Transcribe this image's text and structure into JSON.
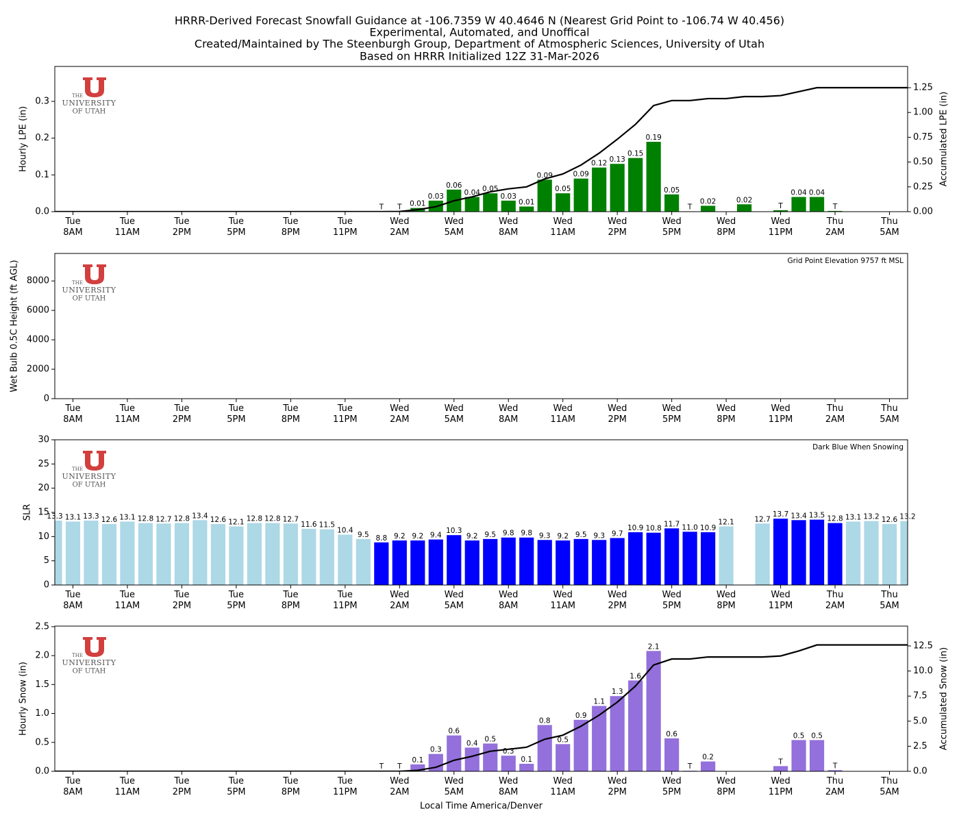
{
  "title": [
    "HRRR-Derived Forecast Snowfall Guidance at -106.7359 W 40.4646 N (Nearest Grid Point to -106.74 W 40.456)",
    "Experimental, Automated, and Unoffical",
    "Created/Maintained by The Steenburgh Group, Department of Atmospheric Sciences, University of Utah",
    "Based on HRRR Initialized 12Z 31-Mar-2026"
  ],
  "logo": [
    "THE",
    "UNIVERSITY",
    "OF UTAH"
  ],
  "chart_data": [
    {
      "type": "bar",
      "ylabel": "Hourly LPE (in)",
      "y2label": "Accumulated LPE (in)",
      "categories": [
        null,
        "Tue\n8AM",
        null,
        null,
        "Tue\n11AM",
        null,
        null,
        "Tue\n2PM",
        null,
        null,
        "Tue\n5PM",
        null,
        null,
        "Tue\n8PM",
        null,
        null,
        "Tue\n11PM",
        null,
        null,
        "Wed\n2AM",
        null,
        null,
        "Wed\n5AM",
        null,
        null,
        "Wed\n8AM",
        null,
        null,
        "Wed\n11AM",
        null,
        null,
        "Wed\n2PM",
        null,
        null,
        "Wed\n5PM",
        null,
        null,
        "Wed\n8PM",
        null,
        null,
        "Wed\n11PM",
        null,
        null,
        "Thu\n2AM",
        null,
        null,
        "Thu\n5AM",
        null
      ],
      "ylim": [
        0,
        0.395
      ],
      "yticks": [
        {
          "value": 0,
          "label": "0.0"
        },
        0.1,
        0.2,
        0.3
      ],
      "y2lim": [
        0,
        1.464
      ],
      "y2ticks": [
        {
          "value": 0,
          "label": "0.00"
        },
        0.25,
        {
          "value": 0.5,
          "label": "0.50"
        },
        0.75,
        {
          "value": 1,
          "label": "1.00"
        },
        1.25
      ],
      "series": [
        {
          "color": "#008000",
          "values": [
            0,
            0,
            0,
            0,
            0,
            0,
            0,
            0,
            0,
            0,
            0,
            0,
            0,
            0,
            0,
            0,
            0,
            0,
            0.001,
            0.001,
            0.01,
            0.03,
            0.06,
            0.04,
            0.05,
            0.03,
            0.014,
            0.087,
            0.05,
            0.09,
            0.12,
            0.13,
            0.146,
            0.19,
            0.047,
            0.001,
            0.016,
            0,
            0.02,
            0,
            0.004,
            0.04,
            0.04,
            0.002,
            0,
            0,
            0,
            0
          ],
          "value_labels": [
            null,
            null,
            null,
            null,
            null,
            null,
            null,
            null,
            null,
            null,
            null,
            null,
            null,
            null,
            null,
            null,
            null,
            null,
            "T",
            "T",
            "0.01",
            "0.03",
            "0.06",
            "0.04",
            "0.05",
            "0.03",
            "0.01",
            "0.09",
            "0.05",
            "0.09",
            "0.12",
            "0.13",
            "0.15",
            "0.19",
            "0.05",
            "T",
            "0.02",
            null,
            "0.02",
            null,
            "T",
            "0.04",
            "0.04",
            "T",
            null,
            null,
            null,
            null
          ]
        },
        {
          "type": "line",
          "axis": "y2",
          "color": "#000000",
          "values": [
            0,
            0,
            0,
            0,
            0,
            0,
            0,
            0,
            0,
            0,
            0,
            0,
            0,
            0,
            0,
            0,
            0,
            0,
            0,
            0.002,
            0.02,
            0.05,
            0.11,
            0.15,
            0.2,
            0.23,
            0.25,
            0.33,
            0.38,
            0.47,
            0.59,
            0.73,
            0.88,
            1.07,
            1.12,
            1.12,
            1.14,
            1.14,
            1.16,
            1.16,
            1.17,
            1.21,
            1.25,
            1.25,
            1.25,
            1.25,
            1.25,
            1.25
          ]
        }
      ]
    },
    {
      "type": "bar",
      "ylabel": "Wet Bulb 0.5C Height (ft AGL)",
      "annotation": "Grid Point Elevation 9757 ft MSL",
      "categories": [
        null,
        "Tue\n8AM",
        null,
        null,
        "Tue\n11AM",
        null,
        null,
        "Tue\n2PM",
        null,
        null,
        "Tue\n5PM",
        null,
        null,
        "Tue\n8PM",
        null,
        null,
        "Tue\n11PM",
        null,
        null,
        "Wed\n2AM",
        null,
        null,
        "Wed\n5AM",
        null,
        null,
        "Wed\n8AM",
        null,
        null,
        "Wed\n11AM",
        null,
        null,
        "Wed\n2PM",
        null,
        null,
        "Wed\n5PM",
        null,
        null,
        "Wed\n8PM",
        null,
        null,
        "Wed\n11PM",
        null,
        null,
        "Thu\n2AM",
        null,
        null,
        "Thu\n5AM",
        null
      ],
      "ylim": [
        0,
        9870
      ],
      "yticks": [
        0,
        2000,
        4000,
        6000,
        8000
      ]
    },
    {
      "type": "bar",
      "ylabel": "SLR",
      "annotation": "Dark Blue When Snowing",
      "categories": [
        null,
        "Tue\n8AM",
        null,
        null,
        "Tue\n11AM",
        null,
        null,
        "Tue\n2PM",
        null,
        null,
        "Tue\n5PM",
        null,
        null,
        "Tue\n8PM",
        null,
        null,
        "Tue\n11PM",
        null,
        null,
        "Wed\n2AM",
        null,
        null,
        "Wed\n5AM",
        null,
        null,
        "Wed\n8AM",
        null,
        null,
        "Wed\n11AM",
        null,
        null,
        "Wed\n2PM",
        null,
        null,
        "Wed\n5PM",
        null,
        null,
        "Wed\n8PM",
        null,
        null,
        "Wed\n11PM",
        null,
        null,
        "Thu\n2AM",
        null,
        null,
        "Thu\n5AM",
        null
      ],
      "ylim": [
        0,
        30
      ],
      "yticks": [
        0,
        5,
        10,
        15,
        20,
        25,
        30
      ],
      "series": [
        {
          "values": [
            13.3,
            13.1,
            13.3,
            12.6,
            13.1,
            12.8,
            12.7,
            12.8,
            13.4,
            12.6,
            12.1,
            12.8,
            12.8,
            12.7,
            11.6,
            11.5,
            10.4,
            9.5,
            8.8,
            9.2,
            9.2,
            9.4,
            10.3,
            9.2,
            9.5,
            9.8,
            9.8,
            9.3,
            9.2,
            9.5,
            9.3,
            9.7,
            10.9,
            10.8,
            11.7,
            11,
            10.9,
            12.1,
            null,
            12.7,
            13.7,
            13.4,
            13.5,
            12.8,
            13.1,
            13.2,
            12.6,
            13.2
          ],
          "value_labels": [
            "13.3",
            "13.1",
            "13.3",
            "12.6",
            "13.1",
            "12.8",
            "12.7",
            "12.8",
            "13.4",
            "12.6",
            "12.1",
            "12.8",
            "12.8",
            "12.7",
            "11.6",
            "11.5",
            "10.4",
            "9.5",
            "8.8",
            "9.2",
            "9.2",
            "9.4",
            "10.3",
            "9.2",
            "9.5",
            "9.8",
            "9.8",
            "9.3",
            "9.2",
            "9.5",
            "9.3",
            "9.7",
            "10.9",
            "10.8",
            "11.7",
            "11.0",
            "10.9",
            "12.1",
            null,
            "12.7",
            "13.7",
            "13.4",
            "13.5",
            "12.8",
            "13.1",
            "13.2",
            "12.6",
            "13.2"
          ],
          "colors": [
            "#add8e6",
            "#add8e6",
            "#add8e6",
            "#add8e6",
            "#add8e6",
            "#add8e6",
            "#add8e6",
            "#add8e6",
            "#add8e6",
            "#add8e6",
            "#add8e6",
            "#add8e6",
            "#add8e6",
            "#add8e6",
            "#add8e6",
            "#add8e6",
            "#add8e6",
            "#add8e6",
            "#0000ff",
            "#0000ff",
            "#0000ff",
            "#0000ff",
            "#0000ff",
            "#0000ff",
            "#0000ff",
            "#0000ff",
            "#0000ff",
            "#0000ff",
            "#0000ff",
            "#0000ff",
            "#0000ff",
            "#0000ff",
            "#0000ff",
            "#0000ff",
            "#0000ff",
            "#0000ff",
            "#0000ff",
            "#add8e6",
            null,
            "#add8e6",
            "#0000ff",
            "#0000ff",
            "#0000ff",
            "#0000ff",
            "#add8e6",
            "#add8e6",
            "#add8e6",
            "#add8e6"
          ]
        }
      ]
    },
    {
      "type": "bar",
      "ylabel": "Hourly Snow (in)",
      "y2label": "Accumulated Snow (in)",
      "xlabel": "Local Time America/Denver",
      "categories": [
        null,
        "Tue\n8AM",
        null,
        null,
        "Tue\n11AM",
        null,
        null,
        "Tue\n2PM",
        null,
        null,
        "Tue\n5PM",
        null,
        null,
        "Tue\n8PM",
        null,
        null,
        "Tue\n11PM",
        null,
        null,
        "Wed\n2AM",
        null,
        null,
        "Wed\n5AM",
        null,
        null,
        "Wed\n8AM",
        null,
        null,
        "Wed\n11AM",
        null,
        null,
        "Wed\n2PM",
        null,
        null,
        "Wed\n5PM",
        null,
        null,
        "Wed\n8PM",
        null,
        null,
        "Wed\n11PM",
        null,
        null,
        "Thu\n2AM",
        null,
        null,
        "Thu\n5AM",
        null
      ],
      "ylim": [
        0,
        2.51
      ],
      "yticks": [
        {
          "value": 0,
          "label": "0.0"
        },
        0.5,
        {
          "value": 1,
          "label": "1.0"
        },
        1.5,
        {
          "value": 2,
          "label": "2.0"
        },
        2.5
      ],
      "y2lim": [
        0,
        14.48
      ],
      "y2ticks": [
        {
          "value": 0,
          "label": "0.0"
        },
        2.5,
        {
          "value": 5,
          "label": "5.0"
        },
        7.5,
        {
          "value": 10,
          "label": "10.0"
        },
        12.5
      ],
      "series": [
        {
          "color": "#9370db",
          "values": [
            0,
            0,
            0,
            0,
            0,
            0,
            0,
            0,
            0,
            0,
            0,
            0,
            0,
            0,
            0,
            0,
            0,
            0,
            0.01,
            0.01,
            0.12,
            0.3,
            0.62,
            0.41,
            0.48,
            0.27,
            0.13,
            0.8,
            0.47,
            0.89,
            1.13,
            1.3,
            1.57,
            2.08,
            0.57,
            0.01,
            0.17,
            0,
            0,
            0,
            0.09,
            0.54,
            0.54,
            0.02,
            0,
            0,
            0,
            0
          ],
          "value_labels": [
            null,
            null,
            null,
            null,
            null,
            null,
            null,
            null,
            null,
            null,
            null,
            null,
            null,
            null,
            null,
            null,
            null,
            null,
            "T",
            "T",
            "0.1",
            "0.3",
            "0.6",
            "0.4",
            "0.5",
            "0.3",
            "0.1",
            "0.8",
            "0.5",
            "0.9",
            "1.1",
            "1.3",
            "1.6",
            "2.1",
            "0.6",
            "T",
            "0.2",
            null,
            null,
            null,
            "T",
            "0.5",
            "0.5",
            "T",
            null,
            null,
            null,
            null
          ]
        },
        {
          "type": "line",
          "axis": "y2",
          "color": "#000000",
          "values": [
            0,
            0,
            0,
            0,
            0,
            0,
            0,
            0,
            0,
            0,
            0,
            0,
            0,
            0,
            0,
            0,
            0,
            0,
            0,
            0,
            0.1,
            0.4,
            1.1,
            1.5,
            2,
            2.2,
            2.4,
            3.2,
            3.6,
            4.5,
            5.6,
            6.9,
            8.5,
            10.6,
            11.2,
            11.2,
            11.4,
            11.4,
            11.4,
            11.4,
            11.5,
            12,
            12.6,
            12.6,
            12.6,
            12.6,
            12.6,
            12.6
          ]
        }
      ]
    }
  ]
}
